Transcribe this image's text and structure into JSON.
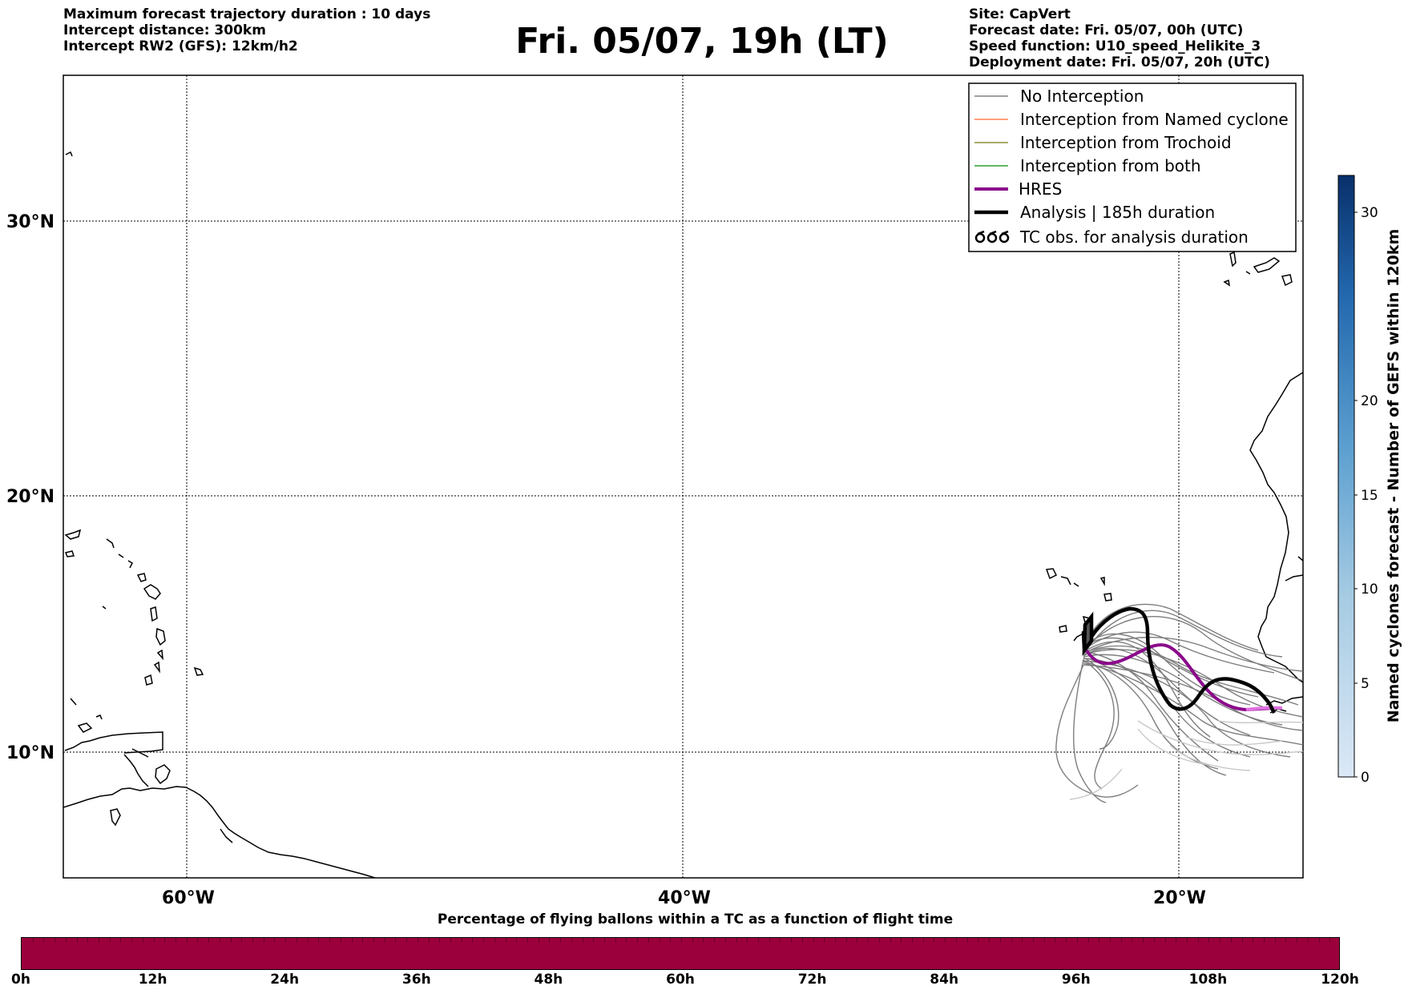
{
  "header_left": [
    "Maximum forecast trajectory duration : 10 days",
    "Intercept distance: 300km",
    "Intercept RW2 (GFS):  12km/h2"
  ],
  "title": "Fri. 05/07, 19h (LT)",
  "header_right": [
    "Site: CapVert",
    "Forecast date: Fri. 05/07, 00h (UTC)",
    "Speed function: U10_speed_Helikite_3",
    "Deployment date: Fri. 05/07, 20h (UTC)"
  ],
  "map": {
    "lon_ticks": [
      "60°W",
      "40°W",
      "20°W"
    ],
    "lat_ticks": [
      "30°N",
      "20°N",
      "10°N"
    ]
  },
  "legend": [
    {
      "label": "No Interception",
      "color": "#808080"
    },
    {
      "label": "Interception from Named cyclone",
      "color": "#ff7f50"
    },
    {
      "label": "Interception from Trochoid",
      "color": "#8b8b3a"
    },
    {
      "label": "Interception from both",
      "color": "#2ca02c"
    },
    {
      "label": "HRES",
      "color": "#8b0a8b"
    },
    {
      "label": "Analysis | 185h duration",
      "color": "#000000"
    },
    {
      "label": "TC obs. for analysis duration",
      "color": "#000000",
      "icon": "tc-symbol-icon"
    }
  ],
  "colorbar": {
    "label": "Named cyclones forecast - Number of GEFS within 120km",
    "ticks": [
      "0",
      "5",
      "10",
      "15",
      "20",
      "30"
    ]
  },
  "bottom_bar": {
    "title": "Percentage of flying ballons within a TC as a function of flight time",
    "color": "#9c003c",
    "ticks": [
      "0h",
      "12h",
      "24h",
      "36h",
      "48h",
      "60h",
      "72h",
      "84h",
      "96h",
      "108h",
      "120h"
    ]
  }
}
